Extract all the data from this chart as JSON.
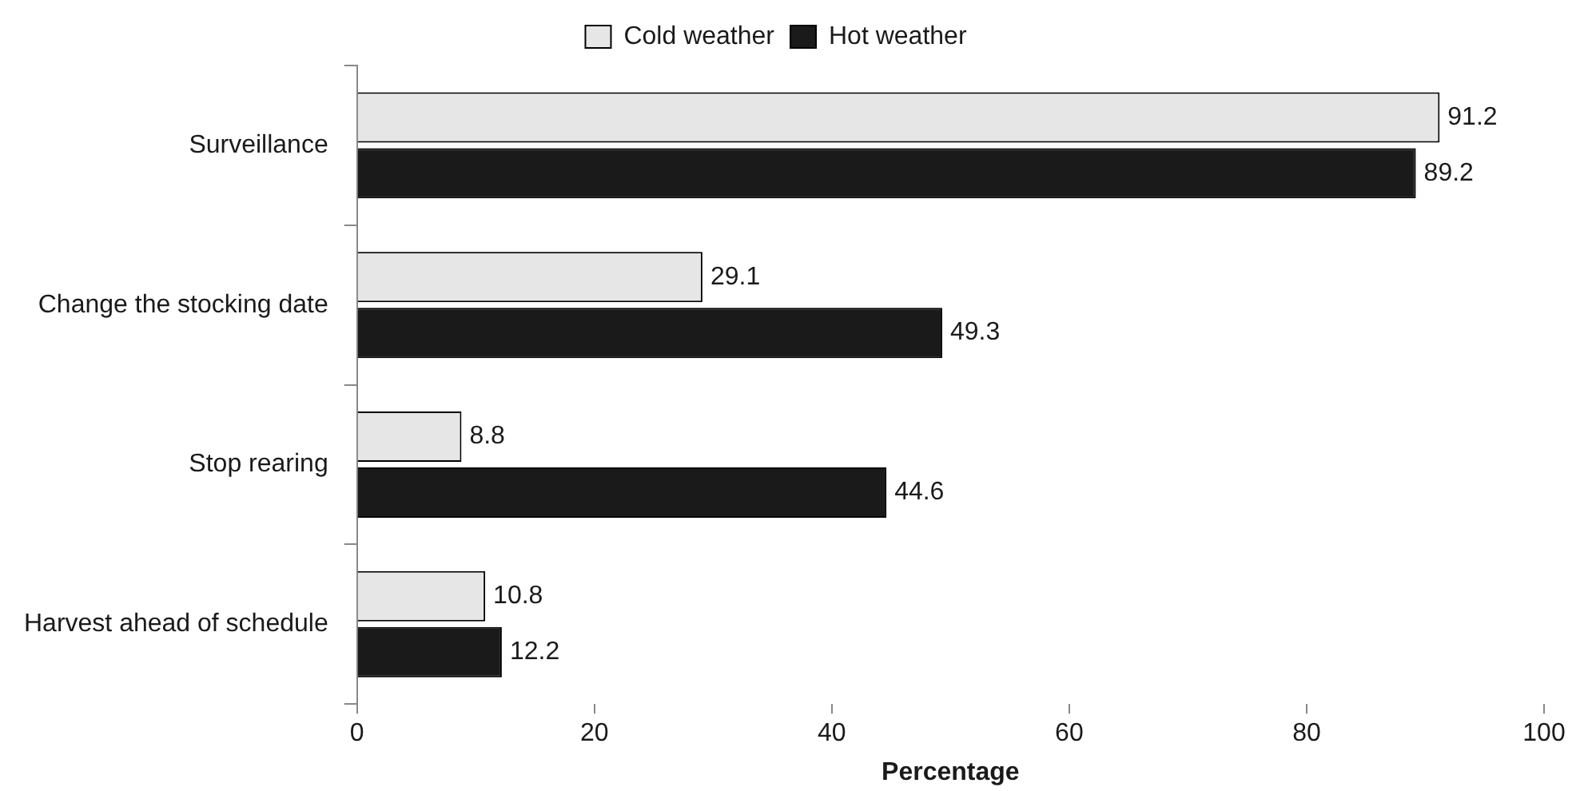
{
  "chart_data": {
    "type": "bar",
    "orientation": "horizontal",
    "xlabel": "Percentage",
    "categories": [
      "Surveillance",
      "Change the stocking date",
      "Stop rearing",
      "Harvest ahead of schedule"
    ],
    "series": [
      {
        "name": "Cold weather",
        "color": "#e6e6e6",
        "values": [
          91.2,
          29.1,
          8.8,
          10.8
        ]
      },
      {
        "name": "Hot weather",
        "color": "#1a1a1a",
        "values": [
          89.2,
          49.3,
          44.6,
          12.2
        ]
      }
    ],
    "xlim": [
      0,
      100
    ],
    "xticks": [
      0,
      20,
      40,
      60,
      80,
      100
    ],
    "grid": false,
    "legend": "top",
    "data_labels": true
  }
}
